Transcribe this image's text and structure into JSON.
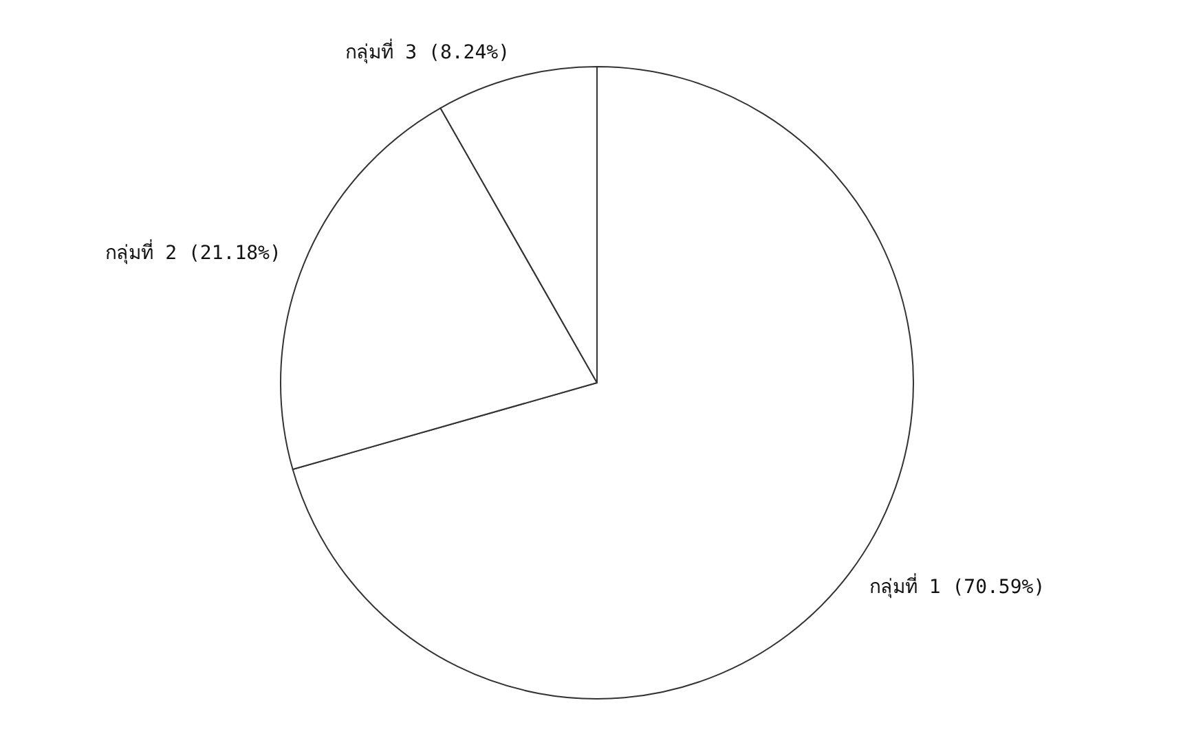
{
  "chart_data": {
    "type": "pie",
    "categories": [
      "กลุ่มที่ 1",
      "กลุ่มที่ 2",
      "กลุ่มที่ 3"
    ],
    "values": [
      70.59,
      21.18,
      8.24
    ],
    "value_labels": [
      "(70.59%)",
      "(21.18%)",
      "(8.24%)"
    ],
    "colors": [
      "#ffffff",
      "#ffffff",
      "#ffffff"
    ],
    "legend": false
  }
}
